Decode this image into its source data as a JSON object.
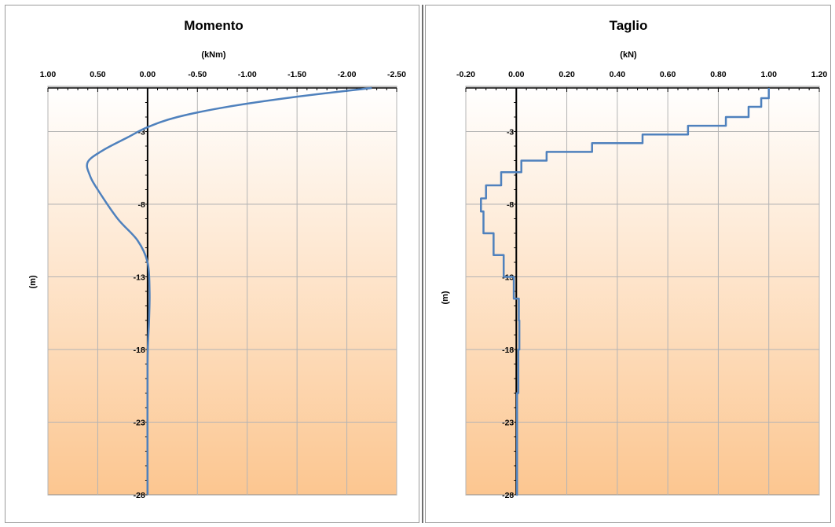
{
  "chart_data": [
    {
      "type": "line",
      "title": "Momento",
      "xlabel": "(kNm)",
      "ylabel": "(m)",
      "xlim": [
        1.0,
        -2.5
      ],
      "ylim": [
        -28,
        0
      ],
      "xticks": [
        "1.00",
        "0.50",
        "0.00",
        "-0.50",
        "-1.00",
        "-1.50",
        "-2.00",
        "-2.50"
      ],
      "yticks": [
        "-3",
        "-8",
        "-13",
        "-18",
        "-23",
        "-28"
      ],
      "grid": true,
      "series": [
        {
          "x": [
            -2.25,
            -1.5,
            -0.8,
            -0.3,
            0.0,
            0.2,
            0.45,
            0.6,
            0.58,
            0.5,
            0.3,
            0.1,
            0.0,
            -0.02,
            -0.015,
            0.0,
            0.0
          ],
          "y": [
            0,
            -0.6,
            -1.3,
            -2.0,
            -2.7,
            -3.4,
            -4.3,
            -5.1,
            -6.0,
            -7.0,
            -9.0,
            -10.5,
            -12.0,
            -14.0,
            -16.0,
            -19.0,
            -28
          ]
        }
      ]
    },
    {
      "type": "line",
      "title": "Taglio",
      "xlabel": "(kN)",
      "ylabel": "(m)",
      "xlim": [
        -0.2,
        1.2
      ],
      "ylim": [
        -28,
        0
      ],
      "xticks": [
        "-0.20",
        "0.00",
        "0.20",
        "0.40",
        "0.60",
        "0.80",
        "1.00",
        "1.20"
      ],
      "yticks": [
        "-3",
        "-8",
        "-13",
        "-18",
        "-23",
        "-28"
      ],
      "grid": true,
      "series": [
        {
          "x": [
            1.0,
            0.97,
            0.92,
            0.83,
            0.68,
            0.5,
            0.3,
            0.12,
            0.02,
            -0.06,
            -0.12,
            -0.14,
            -0.13,
            -0.09,
            -0.05,
            -0.01,
            0.01,
            0.012,
            0.008,
            0.003,
            0.0
          ],
          "y": [
            0,
            -0.7,
            -1.3,
            -2.0,
            -2.6,
            -3.2,
            -3.8,
            -4.4,
            -5.0,
            -5.8,
            -6.7,
            -7.6,
            -8.5,
            -10.0,
            -11.5,
            -13.0,
            -14.5,
            -16.0,
            -18.0,
            -21.0,
            -28
          ]
        }
      ]
    }
  ],
  "colors": {
    "line": "#4f81bd",
    "grid": "#b4b4b4",
    "axis": "#000000",
    "bg_top": "#ffffff",
    "bg_bottom": "#fcc690"
  }
}
